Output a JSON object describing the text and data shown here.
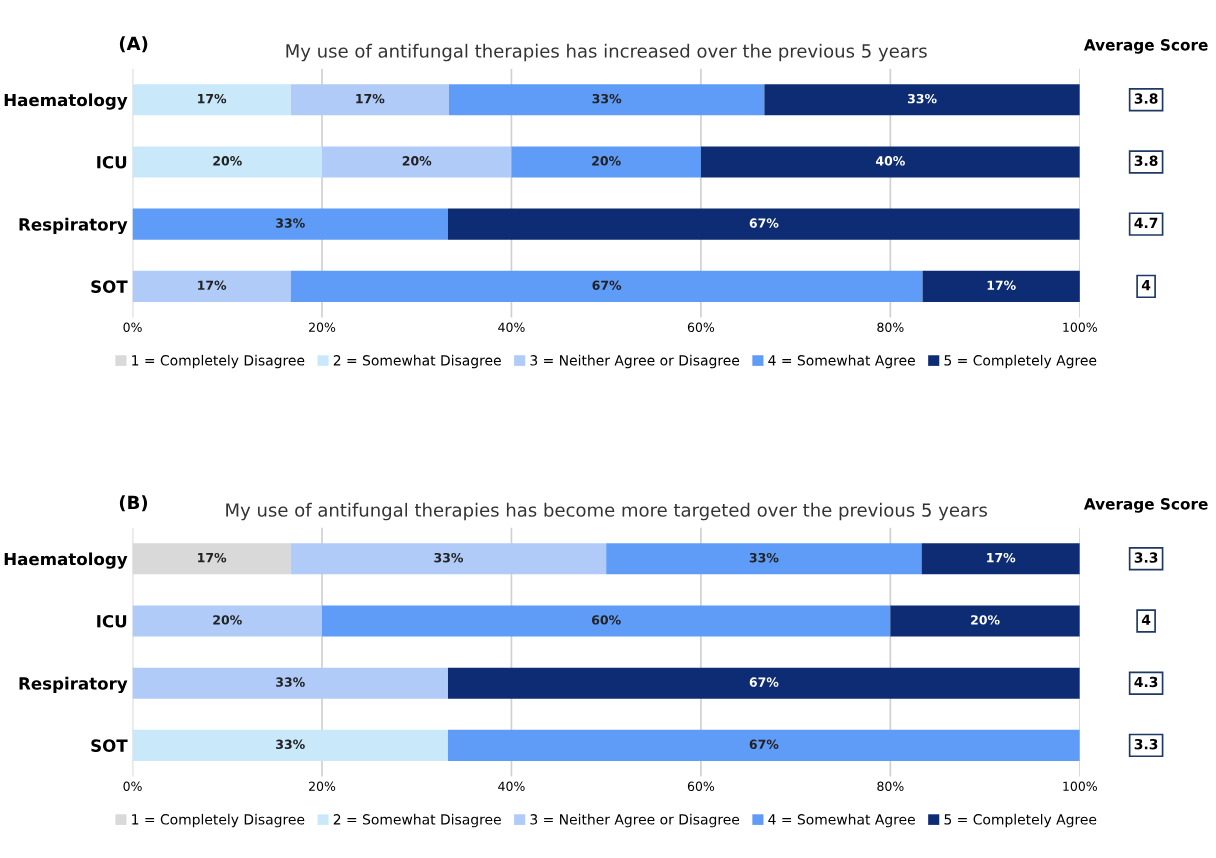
{
  "chart_data": [
    {
      "type": "bar",
      "orientation": "horizontal",
      "stacked": true,
      "title": "My use of antifungal therapies has increased over the previous 5 years",
      "categories": [
        "Haematology",
        "ICU",
        "Respiratory",
        "SOT"
      ],
      "series": [
        {
          "name": "1 = Completely Disagree",
          "color": "#d9d9d9",
          "values": [
            null,
            null,
            null,
            null
          ],
          "value_labels": [
            null,
            null,
            null,
            null
          ]
        },
        {
          "name": "2 = Somewhat Disagree",
          "color": "#c9e9fb",
          "values": [
            16.7,
            20,
            null,
            null
          ],
          "value_labels": [
            "17%",
            "20%",
            null,
            null
          ]
        },
        {
          "name": "3 = Neither Agree or Disagree",
          "color": "#b0cbf7",
          "values": [
            16.7,
            20,
            null,
            16.7
          ],
          "value_labels": [
            "17%",
            "20%",
            null,
            "17%"
          ]
        },
        {
          "name": "4 = Somewhat Agree",
          "color": "#5f9cf8",
          "values": [
            33.3,
            20,
            33.3,
            66.7
          ],
          "value_labels": [
            "33%",
            "20%",
            "33%",
            "67%"
          ]
        },
        {
          "name": "5 = Completely Agree",
          "color": "#0d2c73",
          "values": [
            33.3,
            40,
            66.7,
            16.7
          ],
          "value_labels": [
            "33%",
            "40%",
            "67%",
            "17%"
          ]
        }
      ],
      "xlim": [
        0,
        100
      ],
      "xticks": [
        {
          "value": 0,
          "label": "0%"
        },
        {
          "value": 20,
          "label": "20%"
        },
        {
          "value": 40,
          "label": "40%"
        },
        {
          "value": 60,
          "label": "60%"
        },
        {
          "value": 80,
          "label": "80%"
        },
        {
          "value": 100,
          "label": "100%"
        }
      ],
      "grid": "x",
      "legend": "bottom",
      "annotations": [
        "(A)",
        "Average Score",
        "3.8",
        "3.8",
        "4.7",
        "4"
      ]
    },
    {
      "type": "bar",
      "orientation": "horizontal",
      "stacked": true,
      "title": "My use of antifungal therapies has become more targeted over the previous 5 years",
      "categories": [
        "Haematology",
        "ICU",
        "Respiratory",
        "SOT"
      ],
      "series": [
        {
          "name": "1 = Completely Disagree",
          "color": "#d9d9d9",
          "values": [
            16.7,
            null,
            null,
            null
          ],
          "value_labels": [
            "17%",
            null,
            null,
            null
          ]
        },
        {
          "name": "2 = Somewhat Disagree",
          "color": "#c9e9fb",
          "values": [
            null,
            null,
            null,
            33.3
          ],
          "value_labels": [
            null,
            null,
            null,
            "33%"
          ]
        },
        {
          "name": "3 = Neither Agree or Disagree",
          "color": "#b0cbf7",
          "values": [
            33.3,
            20,
            33.3,
            null
          ],
          "value_labels": [
            "33%",
            "20%",
            "33%",
            null
          ]
        },
        {
          "name": "4 = Somewhat Agree",
          "color": "#5f9cf8",
          "values": [
            33.3,
            60,
            null,
            66.7
          ],
          "value_labels": [
            "33%",
            "60%",
            null,
            "67%"
          ]
        },
        {
          "name": "5 = Completely Agree",
          "color": "#0d2c73",
          "values": [
            16.7,
            20,
            66.7,
            null
          ],
          "value_labels": [
            "17%",
            "20%",
            "67%",
            null
          ]
        }
      ],
      "xlim": [
        0,
        100
      ],
      "xticks": [
        {
          "value": 0,
          "label": "0%"
        },
        {
          "value": 20,
          "label": "20%"
        },
        {
          "value": 40,
          "label": "40%"
        },
        {
          "value": 60,
          "label": "60%"
        },
        {
          "value": 80,
          "label": "80%"
        },
        {
          "value": 100,
          "label": "100%"
        }
      ],
      "grid": "x",
      "legend": "bottom",
      "annotations": [
        "(B)",
        "Average Score",
        "3.3",
        "4",
        "4.3",
        "3.3"
      ]
    }
  ]
}
